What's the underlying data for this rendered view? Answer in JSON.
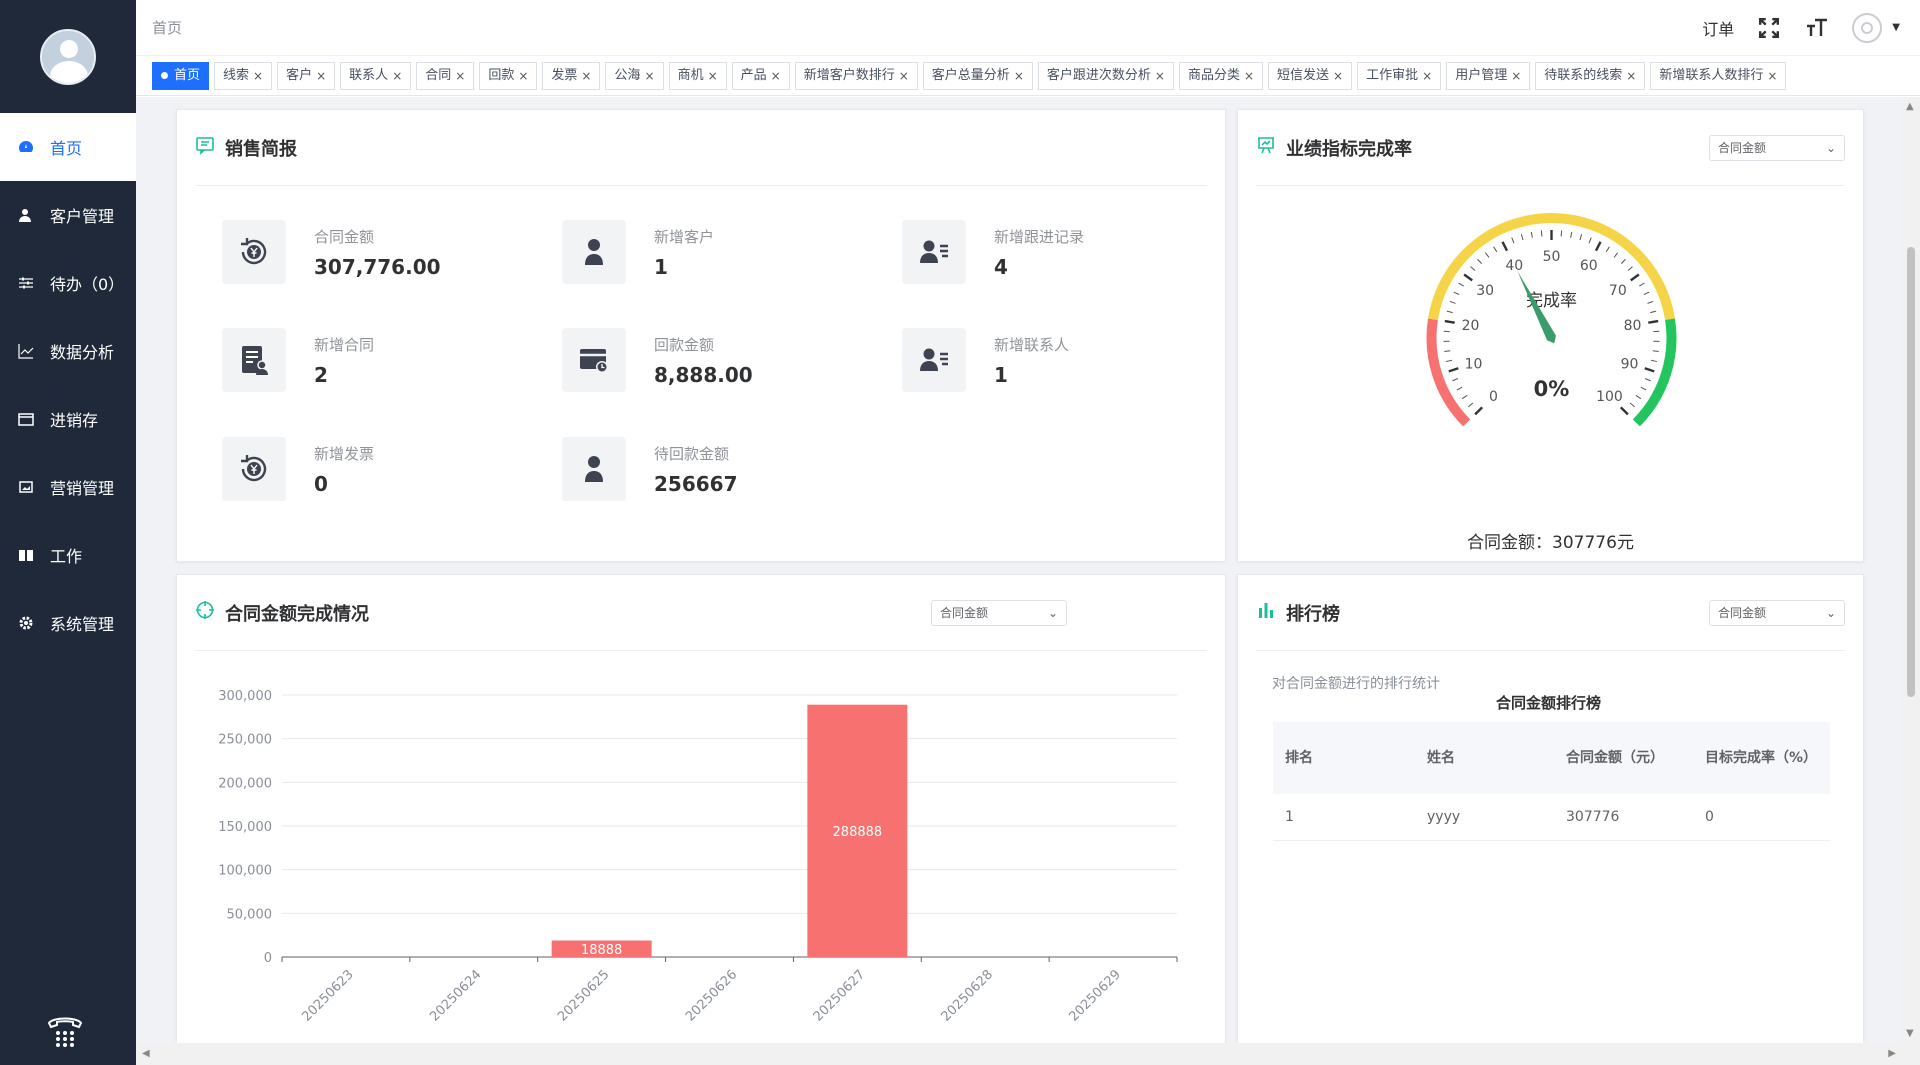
{
  "sidebar": {
    "items": [
      {
        "label": "首页",
        "icon": "dashboard-icon"
      },
      {
        "label": "客户管理",
        "icon": "user-icon"
      },
      {
        "label": "待办（0）",
        "icon": "sliders-icon"
      },
      {
        "label": "数据分析",
        "icon": "line-chart-icon"
      },
      {
        "label": "进销存",
        "icon": "folder-icon"
      },
      {
        "label": "营销管理",
        "icon": "picture-icon"
      },
      {
        "label": "工作",
        "icon": "book-icon"
      },
      {
        "label": "系统管理",
        "icon": "gear-icon"
      }
    ]
  },
  "topbar": {
    "breadcrumb": "首页",
    "order": "订单"
  },
  "tabs": [
    "首页",
    "线索",
    "客户",
    "联系人",
    "合同",
    "回款",
    "发票",
    "公海",
    "商机",
    "产品",
    "新增客户数排行",
    "客户总量分析",
    "客户跟进次数分析",
    "商品分类",
    "短信发送",
    "工作审批",
    "用户管理",
    "待联系的线索",
    "新增联系人数排行"
  ],
  "sales": {
    "title": "销售简报",
    "stats": [
      {
        "label": "合同金额",
        "value": "307,776.00",
        "icon": "yen-cycle-icon"
      },
      {
        "label": "新增客户",
        "value": "1",
        "icon": "person-icon"
      },
      {
        "label": "新增跟进记录",
        "value": "4",
        "icon": "contact-card-icon"
      },
      {
        "label": "新增合同",
        "value": "2",
        "icon": "contract-icon"
      },
      {
        "label": "回款金额",
        "value": "8,888.00",
        "icon": "card-payment-icon"
      },
      {
        "label": "新增联系人",
        "value": "1",
        "icon": "contact-card-icon"
      },
      {
        "label": "新增发票",
        "value": "0",
        "icon": "yen-cycle-icon"
      },
      {
        "label": "待回款金额",
        "value": "256667",
        "icon": "person-icon"
      }
    ]
  },
  "perf": {
    "title": "业绩指标完成率",
    "select": "合同金额",
    "gauge_label": "完成率",
    "gauge_value": "0%",
    "percent": 0,
    "ticks": [
      "0",
      "10",
      "20",
      "30",
      "40",
      "50",
      "60",
      "70",
      "80",
      "90",
      "100"
    ],
    "footer": "合同金额：307776元"
  },
  "contract": {
    "title": "合同金额完成情况",
    "select": "合同金额"
  },
  "rank": {
    "title": "排行榜",
    "select": "合同金额",
    "subtitle": "对合同金额进行的排行统计",
    "table_title": "合同金额排行榜",
    "headers": [
      "排名",
      "姓名",
      "合同金额（元）",
      "目标完成率（%）"
    ],
    "rows": [
      [
        "1",
        "yyyy",
        "307776",
        "0"
      ]
    ]
  },
  "colors": {
    "accent": "#1f6fff",
    "bar": "#f87171",
    "sidebar": "#20293a"
  },
  "chart_data": {
    "type": "bar",
    "categories": [
      "20250623",
      "20250624",
      "20250625",
      "20250626",
      "20250627",
      "20250628",
      "20250629"
    ],
    "values": [
      0,
      0,
      18888,
      0,
      288888,
      0,
      0
    ],
    "data_labels": [
      "",
      "",
      "18888",
      "",
      "288888",
      "",
      ""
    ],
    "y_ticks": [
      "0",
      "50,000",
      "100,000",
      "150,000",
      "200,000",
      "250,000",
      "300,000"
    ],
    "ylim": [
      0,
      300000
    ],
    "title": "",
    "xlabel": "",
    "ylabel": "",
    "grid": true
  }
}
